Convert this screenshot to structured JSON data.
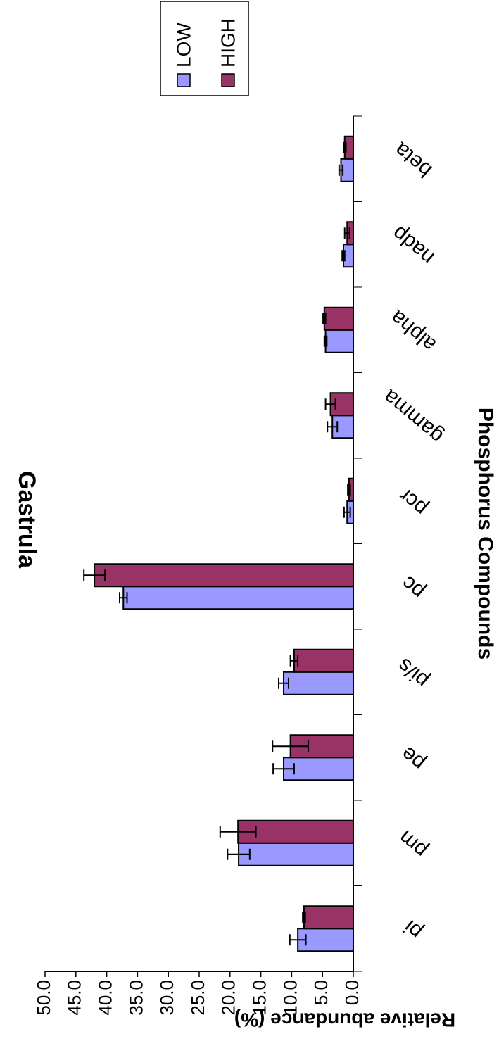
{
  "chart_data": {
    "type": "bar",
    "title": "Gastrula",
    "xlabel": "Phosphorus Compounds",
    "ylabel": "Relative abundance (%)",
    "categories": [
      "pi",
      "pm",
      "pe",
      "pi/s",
      "pc",
      "pcr",
      "gamma",
      "alpha",
      "nadp",
      "beta"
    ],
    "ylim": [
      0,
      50
    ],
    "yticks": [
      "0.0",
      "5.0",
      "10.0",
      "15.0",
      "20.0",
      "25.0",
      "30.0",
      "35.0",
      "40.0",
      "45.0",
      "50.0"
    ],
    "orientation": "rotated 90 degrees clockwise",
    "legend_position": "top-right",
    "grid": false,
    "series": [
      {
        "name": "LOW",
        "color": "#9999ff",
        "values": [
          9.0,
          18.6,
          11.3,
          11.3,
          37.3,
          1.0,
          3.4,
          4.5,
          1.6,
          2.0
        ],
        "errors": [
          1.3,
          1.8,
          1.7,
          0.8,
          0.6,
          0.5,
          0.8,
          0.2,
          0.2,
          0.3
        ]
      },
      {
        "name": "HIGH",
        "color": "#993366",
        "values": [
          8.0,
          18.7,
          10.2,
          9.6,
          42.0,
          0.7,
          3.7,
          4.7,
          1.0,
          1.4
        ],
        "errors": [
          0.2,
          2.9,
          2.9,
          0.6,
          1.7,
          0.2,
          0.8,
          0.2,
          0.4,
          0.2
        ]
      }
    ]
  }
}
